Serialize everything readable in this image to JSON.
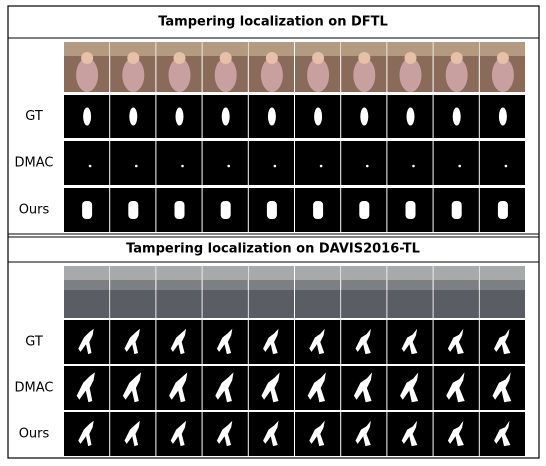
{
  "sections": [
    {
      "title": "Tampering localization on DFTL",
      "rows": [
        "GT",
        "DMAC",
        "Ours"
      ]
    },
    {
      "title": "Tampering localization on DAVIS2016-TL",
      "rows": [
        "GT",
        "DMAC",
        "Ours"
      ]
    }
  ]
}
